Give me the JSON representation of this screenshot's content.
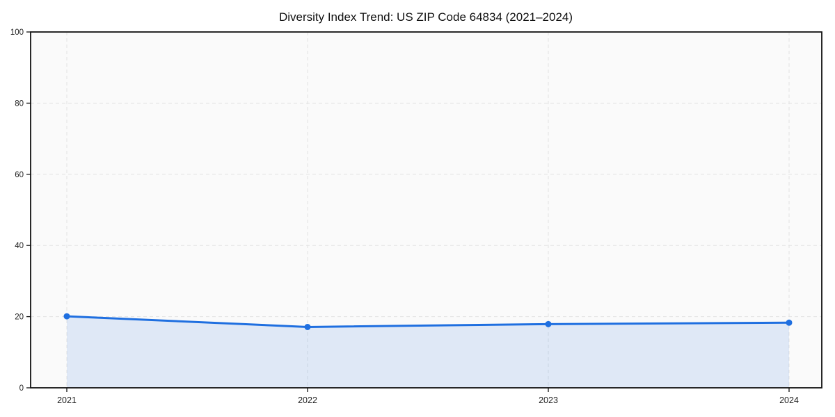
{
  "page": {
    "background": "#ffffff"
  },
  "chart_data": {
    "type": "area",
    "title": "Diversity Index Trend: US ZIP Code 64834 (2021–2024)",
    "x": [
      "2021",
      "2022",
      "2023",
      "2024"
    ],
    "series": [
      {
        "name": "Diversity Index",
        "values": [
          20.1,
          17.1,
          17.9,
          18.3
        ]
      }
    ],
    "xlabel": "",
    "ylabel": "",
    "ylim": [
      0,
      100
    ],
    "yticks": [
      0,
      20,
      40,
      60,
      80,
      100
    ],
    "grid": "on",
    "grid_style": "dashed",
    "legend": "none",
    "colors": {
      "line": "#1f6fe0",
      "marker": "#1f6fe0",
      "fill": "#1f6fe0",
      "fill_opacity": 0.12,
      "plot_background": "#fafafa",
      "grid": "#e2e2e2",
      "spine": "#111111",
      "title": "#111111",
      "tick_label": "#222222"
    }
  }
}
